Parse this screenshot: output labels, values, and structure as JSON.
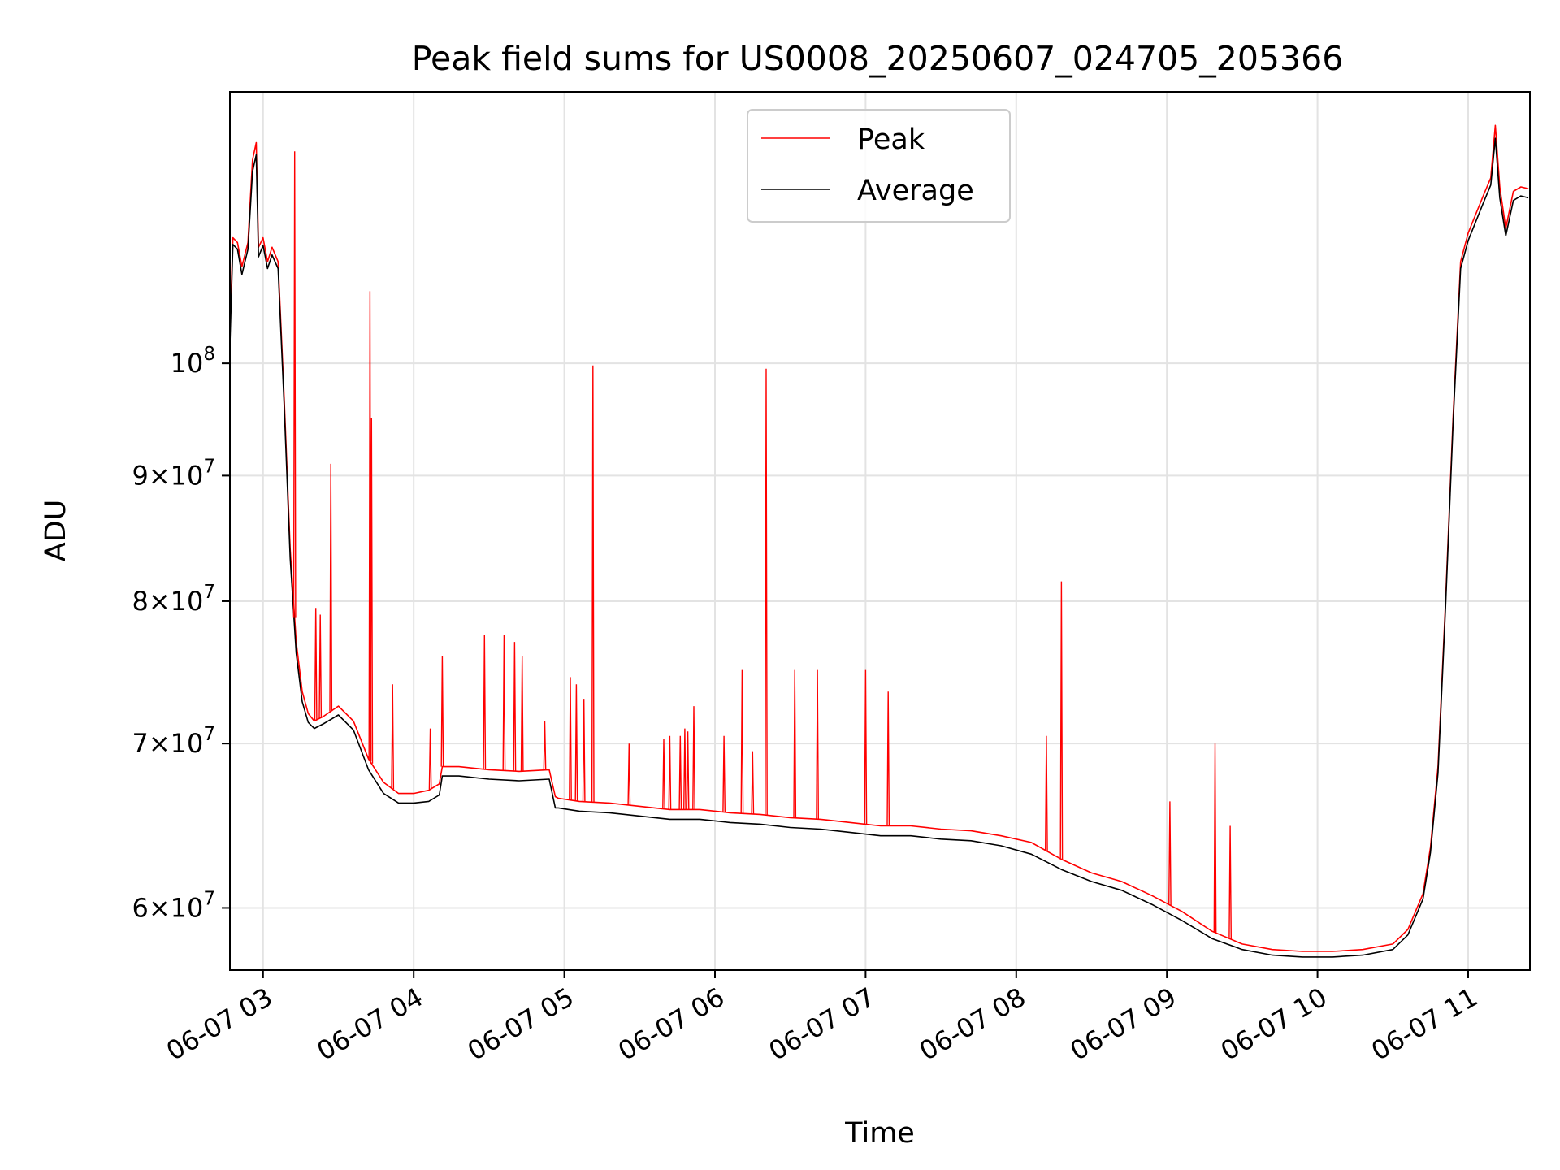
{
  "chart_data": {
    "type": "line",
    "title": "Peak field sums for US0008_20250607_024705_205366",
    "xlabel": "Time",
    "ylabel": "ADU",
    "yscale": "log",
    "xlim": [
      2.78,
      11.41
    ],
    "ylim": [
      56600000,
      129000000
    ],
    "grid": true,
    "legend_position": "upper-center",
    "x_ticks": [
      {
        "value": 3,
        "label": "06-07 03"
      },
      {
        "value": 4,
        "label": "06-07 04"
      },
      {
        "value": 5,
        "label": "06-07 05"
      },
      {
        "value": 6,
        "label": "06-07 06"
      },
      {
        "value": 7,
        "label": "06-07 07"
      },
      {
        "value": 8,
        "label": "06-07 08"
      },
      {
        "value": 9,
        "label": "06-07 09"
      },
      {
        "value": 10,
        "label": "06-07 10"
      },
      {
        "value": 11,
        "label": "06-07 11"
      }
    ],
    "y_ticks": [
      {
        "value": 60000000,
        "mantissa": "6",
        "base": "10",
        "exp": "7"
      },
      {
        "value": 70000000,
        "mantissa": "7",
        "base": "10",
        "exp": "7"
      },
      {
        "value": 80000000,
        "mantissa": "8",
        "base": "10",
        "exp": "7"
      },
      {
        "value": 90000000,
        "mantissa": "9",
        "base": "10",
        "exp": "7"
      },
      {
        "value": 100000000,
        "mantissa": "",
        "base": "10",
        "exp": "8"
      }
    ],
    "series": [
      {
        "name": "Peak",
        "color": "#ff0000",
        "x": [
          2.78,
          2.8,
          2.83,
          2.86,
          2.9,
          2.93,
          2.955,
          2.97,
          3.0,
          3.03,
          3.06,
          3.1,
          3.14,
          3.18,
          3.22,
          3.26,
          3.3,
          3.34,
          3.4,
          3.5,
          3.6,
          3.7,
          3.8,
          3.9,
          4.0,
          4.1,
          4.17,
          4.19,
          4.3,
          4.5,
          4.7,
          4.9,
          4.94,
          4.96,
          5.1,
          5.3,
          5.5,
          5.7,
          5.9,
          6.1,
          6.3,
          6.5,
          6.7,
          6.9,
          7.1,
          7.3,
          7.5,
          7.7,
          7.9,
          8.1,
          8.3,
          8.5,
          8.7,
          8.9,
          9.1,
          9.3,
          9.5,
          9.7,
          9.9,
          10.1,
          10.3,
          10.5,
          10.6,
          10.7,
          10.75,
          10.8,
          10.85,
          10.9,
          10.95,
          11.0,
          11.05,
          11.1,
          11.15,
          11.18,
          11.21,
          11.25,
          11.3,
          11.35,
          11.4
        ],
        "y": [
          103000000,
          112500000,
          112000000,
          109500000,
          112000000,
          121000000,
          123000000,
          111500000,
          112500000,
          110000000,
          111500000,
          110000000,
          97000000,
          84000000,
          77000000,
          73500000,
          72000000,
          71500000,
          71800000,
          72500000,
          71500000,
          69000000,
          67500000,
          66800000,
          66800000,
          67000000,
          67400000,
          68500000,
          68500000,
          68300000,
          68200000,
          68300000,
          66600000,
          66500000,
          66300000,
          66200000,
          66000000,
          65800000,
          65800000,
          65600000,
          65500000,
          65300000,
          65200000,
          65000000,
          64800000,
          64800000,
          64600000,
          64500000,
          64200000,
          63800000,
          62800000,
          62000000,
          61500000,
          60700000,
          59800000,
          58700000,
          58000000,
          57700000,
          57600000,
          57600000,
          57700000,
          58000000,
          58800000,
          60800000,
          63500000,
          68500000,
          80000000,
          95000000,
          110000000,
          113000000,
          115000000,
          117000000,
          119000000,
          125000000,
          118000000,
          113500000,
          117500000,
          118000000,
          117800000
        ]
      },
      {
        "name": "Average",
        "color": "#000000",
        "x": [
          2.78,
          2.8,
          2.83,
          2.86,
          2.9,
          2.93,
          2.955,
          2.97,
          3.0,
          3.03,
          3.06,
          3.1,
          3.14,
          3.18,
          3.22,
          3.26,
          3.3,
          3.34,
          3.4,
          3.5,
          3.6,
          3.7,
          3.8,
          3.9,
          4.0,
          4.1,
          4.17,
          4.19,
          4.3,
          4.5,
          4.7,
          4.9,
          4.94,
          4.96,
          5.1,
          5.3,
          5.5,
          5.7,
          5.9,
          6.1,
          6.3,
          6.5,
          6.7,
          6.9,
          7.1,
          7.3,
          7.5,
          7.7,
          7.9,
          8.1,
          8.3,
          8.5,
          8.7,
          8.9,
          9.1,
          9.3,
          9.5,
          9.7,
          9.9,
          10.1,
          10.3,
          10.5,
          10.6,
          10.7,
          10.75,
          10.8,
          10.85,
          10.9,
          10.95,
          11.0,
          11.05,
          11.1,
          11.15,
          11.18,
          11.21,
          11.25,
          11.3,
          11.35,
          11.4
        ],
        "y": [
          101800000,
          111800000,
          111300000,
          108700000,
          111300000,
          119700000,
          121600000,
          110500000,
          111700000,
          109300000,
          110700000,
          109300000,
          96300000,
          83300000,
          76200000,
          72800000,
          71400000,
          71000000,
          71300000,
          71900000,
          70900000,
          68300000,
          66800000,
          66200000,
          66200000,
          66300000,
          66700000,
          67900000,
          67900000,
          67700000,
          67600000,
          67700000,
          65900000,
          65900000,
          65700000,
          65600000,
          65400000,
          65200000,
          65200000,
          65000000,
          64900000,
          64700000,
          64600000,
          64400000,
          64200000,
          64200000,
          64000000,
          63900000,
          63600000,
          63100000,
          62200000,
          61500000,
          61000000,
          60200000,
          59300000,
          58300000,
          57700000,
          57400000,
          57300000,
          57300000,
          57400000,
          57700000,
          58500000,
          60500000,
          63200000,
          68100000,
          79600000,
          94500000,
          109300000,
          112200000,
          114200000,
          116200000,
          118200000,
          123500000,
          116800000,
          112700000,
          116500000,
          117000000,
          116800000
        ]
      }
    ],
    "spikes": {
      "x": [
        3.21,
        3.35,
        3.38,
        3.45,
        3.71,
        3.72,
        3.86,
        4.11,
        4.19,
        4.47,
        4.6,
        4.67,
        4.72,
        4.87,
        5.04,
        5.08,
        5.13,
        5.19,
        5.43,
        5.66,
        5.7,
        5.77,
        5.8,
        5.82,
        5.86,
        6.06,
        6.18,
        6.25,
        6.34,
        6.53,
        6.68,
        7.0,
        7.15,
        8.2,
        8.3,
        9.02,
        9.32,
        9.42
      ],
      "y": [
        122000000,
        79500000,
        79000000,
        91000000,
        107000000,
        95000000,
        74000000,
        71000000,
        76000000,
        77500000,
        77500000,
        77000000,
        76000000,
        71500000,
        74500000,
        74000000,
        73000000,
        99800000,
        70000000,
        70300000,
        70500000,
        70500000,
        71000000,
        70800000,
        72500000,
        70500000,
        75000000,
        69500000,
        99500000,
        75000000,
        75000000,
        75000000,
        73500000,
        70500000,
        81500000,
        66300000,
        70000000,
        64800000
      ]
    }
  }
}
